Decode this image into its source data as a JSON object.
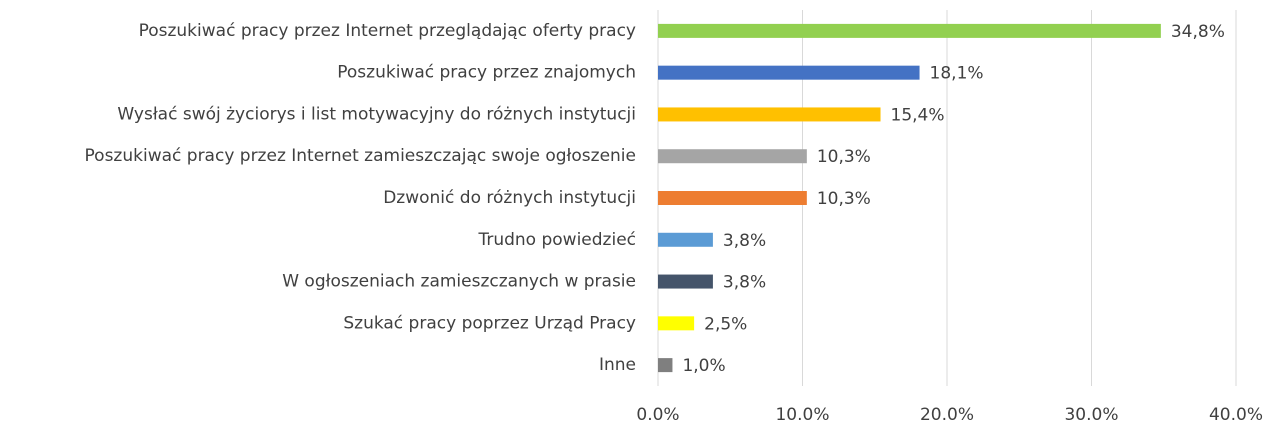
{
  "chart_data": {
    "type": "bar",
    "orientation": "horizontal",
    "categories": [
      "Poszukiwać pracy przez Internet przeglądając oferty pracy",
      "Poszukiwać pracy przez znajomych",
      "Wysłać swój życiorys i list motywacyjny do różnych instytucji",
      "Poszukiwać pracy przez Internet zamieszczając swoje ogłoszenie",
      "Dzwonić do różnych instytucji",
      "Trudno powiedzieć",
      "W ogłoszeniach zamieszczanych w prasie",
      "Szukać pracy poprzez Urząd Pracy",
      "Inne"
    ],
    "values": [
      34.8,
      18.1,
      15.4,
      10.3,
      10.3,
      3.8,
      3.8,
      2.5,
      1.0
    ],
    "value_labels": [
      "34,8%",
      "18,1%",
      "15,4%",
      "10,3%",
      "10,3%",
      "3,8%",
      "3,8%",
      "2,5%",
      "1,0%"
    ],
    "colors": [
      "#92d050",
      "#4472c4",
      "#ffc000",
      "#a5a5a5",
      "#ed7d31",
      "#5b9bd5",
      "#44546a",
      "#ffff00",
      "#7f7f7f"
    ],
    "xlim": [
      0,
      40
    ],
    "xticks": [
      {
        "value": 0,
        "label": "0.0%"
      },
      {
        "value": 10,
        "label": "10.0%"
      },
      {
        "value": 20,
        "label": "20.0%"
      },
      {
        "value": 30,
        "label": "30.0%"
      },
      {
        "value": 40,
        "label": "40.0%"
      }
    ],
    "grid": true
  }
}
